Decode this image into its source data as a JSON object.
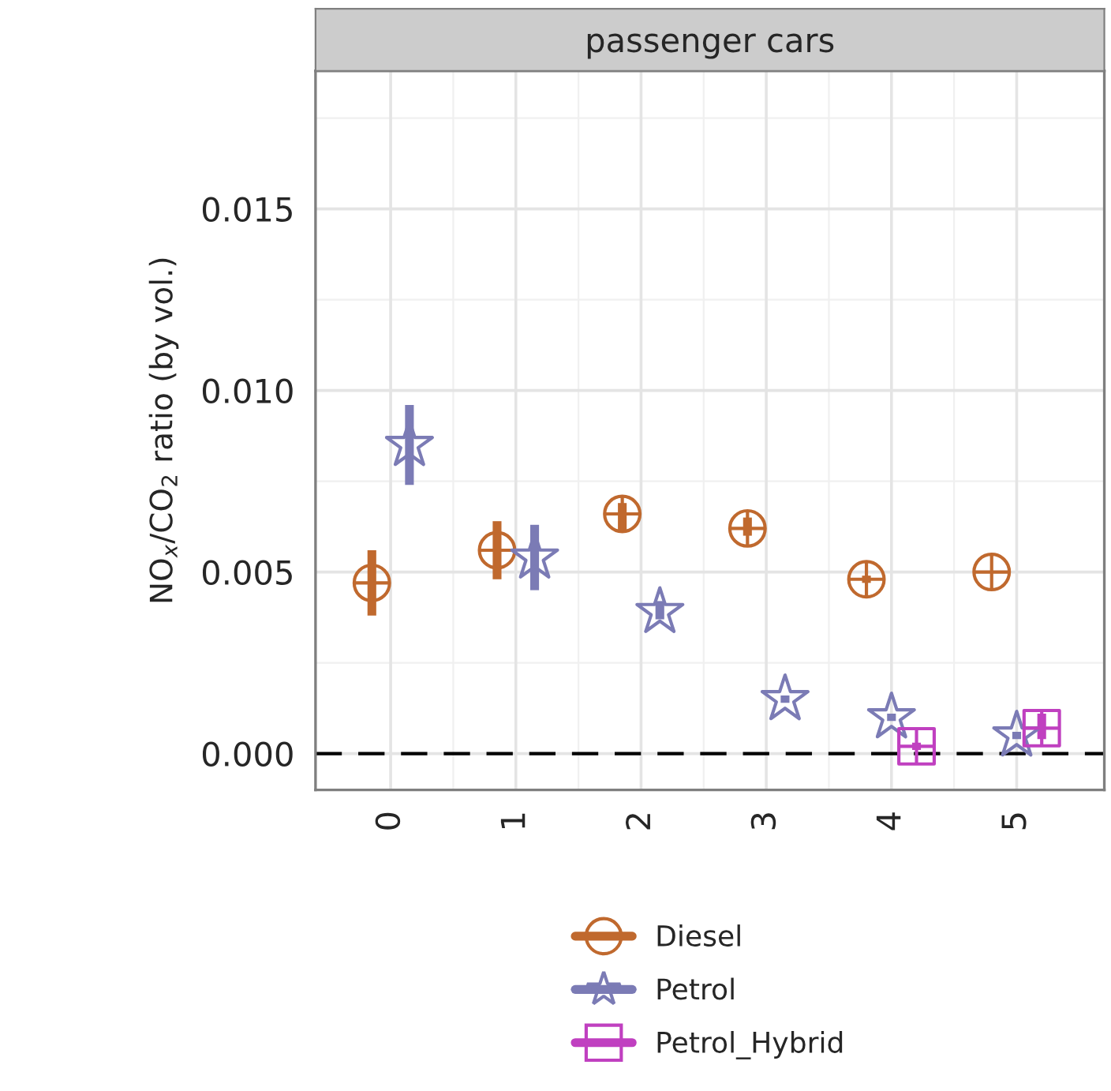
{
  "chart_data": {
    "type": "scatter",
    "title": "passenger cars",
    "ylabel": "NO$_{x}$/CO$_{2}$ ratio (by vol.)",
    "categories": [
      "0",
      "1",
      "2",
      "3",
      "4",
      "5"
    ],
    "series": [
      {
        "name": "Diesel",
        "color": "#c0692e",
        "marker": "circle",
        "values": [
          0.0047,
          0.0056,
          0.0066,
          0.0062,
          0.0048,
          0.005
        ],
        "errors": [
          [
            0.0038,
            0.0056
          ],
          [
            0.0048,
            0.0064
          ],
          [
            0.0061,
            0.0069
          ],
          [
            0.006,
            0.0065
          ],
          [
            0.0047,
            0.0049
          ],
          null
        ]
      },
      {
        "name": "Petrol",
        "color": "#7b7bb5",
        "marker": "star",
        "values": [
          0.0085,
          0.0054,
          0.0039,
          0.0015,
          0.001,
          0.0005
        ],
        "errors": [
          [
            0.0074,
            0.0096
          ],
          [
            0.0045,
            0.0063
          ],
          [
            0.0037,
            0.0042
          ],
          [
            0.0014,
            0.0016
          ],
          [
            0.0009,
            0.0011
          ],
          [
            0.0004,
            0.0006
          ]
        ]
      },
      {
        "name": "Petrol_Hybrid",
        "color": "#c040c0",
        "marker": "square",
        "values": [
          null,
          null,
          null,
          null,
          0.0002,
          0.0007
        ],
        "errors": [
          null,
          null,
          null,
          null,
          [
            0.0001,
            0.0003
          ],
          [
            0.0004,
            0.0011
          ]
        ]
      }
    ],
    "ylim": [
      -0.001,
      0.0188
    ],
    "yticks": [
      {
        "value": 0,
        "label": "0.000"
      },
      {
        "value": 0.005,
        "label": "0.005"
      },
      {
        "value": 0.01,
        "label": "0.010"
      },
      {
        "value": 0.015,
        "label": "0.015"
      }
    ],
    "ref_lines": [
      {
        "axis": "y",
        "value": 0,
        "color": "#000000",
        "line_style": "dashed"
      }
    ],
    "grid": true,
    "legend": "bottom"
  }
}
